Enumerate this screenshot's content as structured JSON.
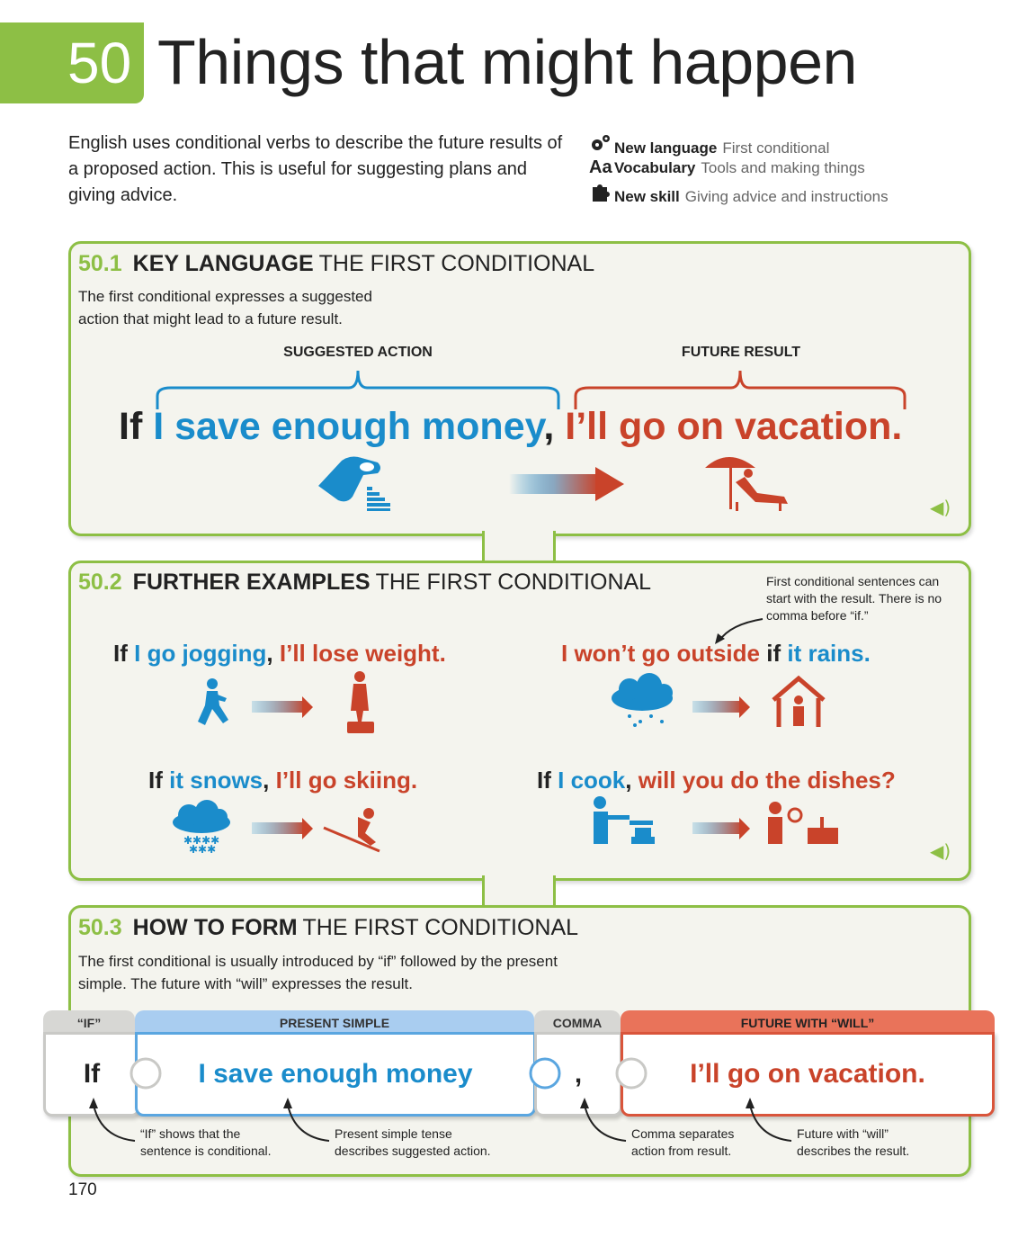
{
  "header": {
    "unit_number": "50",
    "title": "Things that might happen",
    "intro": "English uses conditional verbs to describe the future results of a proposed action. This is useful for suggesting plans and giving advice.",
    "meta": [
      {
        "icon": "gears-icon",
        "label": "New language",
        "value": "First conditional"
      },
      {
        "icon": "aa-vocabulary-icon",
        "label": "Vocabulary",
        "value": "Tools and making things"
      },
      {
        "icon": "puzzle-piece-icon",
        "label": "New skill",
        "value": "Giving advice and instructions"
      }
    ],
    "aa_glyph": "Aa"
  },
  "colors": {
    "green": "#8dbf45",
    "blue": "#1a8ccb",
    "red": "#c9432a",
    "panel_bg": "#f4f4ee"
  },
  "s1": {
    "num": "50.1",
    "key": "KEY LANGUAGE",
    "sub": "THE FIRST CONDITIONAL",
    "desc": "The first conditional expresses a suggested action that might lead to a future result.",
    "label_action": "SUGGESTED ACTION",
    "label_result": "FUTURE RESULT",
    "sent_if": "If",
    "sent_action": "I save enough money",
    "sent_comma": ",",
    "sent_result": "I’ll go on vacation."
  },
  "s2": {
    "num": "50.2",
    "key": "FURTHER EXAMPLES",
    "sub": "THE FIRST CONDITIONAL",
    "note": "First conditional sentences can start with the result. There is no comma before “if.”",
    "ex1": {
      "if": "If",
      "action": "I go jogging",
      "comma": ",",
      "result": "I’ll lose weight."
    },
    "ex2": {
      "result": "I won’t go outside",
      "if": "if",
      "action": "it rains."
    },
    "ex3": {
      "if": "If",
      "action": "it snows",
      "comma": ",",
      "result": "I’ll go skiing."
    },
    "ex4": {
      "if": "If",
      "action": "I cook",
      "comma": ",",
      "result": "will you do the dishes?"
    }
  },
  "s3": {
    "num": "50.3",
    "key": "HOW TO FORM",
    "sub": "THE FIRST CONDITIONAL",
    "desc": "The first conditional is usually introduced by “if” followed by the present simple. The future with “will” expresses the result.",
    "tabs": [
      "“IF”",
      "PRESENT SIMPLE",
      "COMMA",
      "FUTURE WITH “WILL”"
    ],
    "pieces": [
      "If",
      "I save enough money",
      ",",
      "I’ll go on vacation."
    ],
    "notes": [
      "“If” shows that the sentence is conditional.",
      "Present simple tense describes suggested action.",
      "Comma separates action from result.",
      "Future with “will” describes the result."
    ]
  },
  "page_number": "170"
}
